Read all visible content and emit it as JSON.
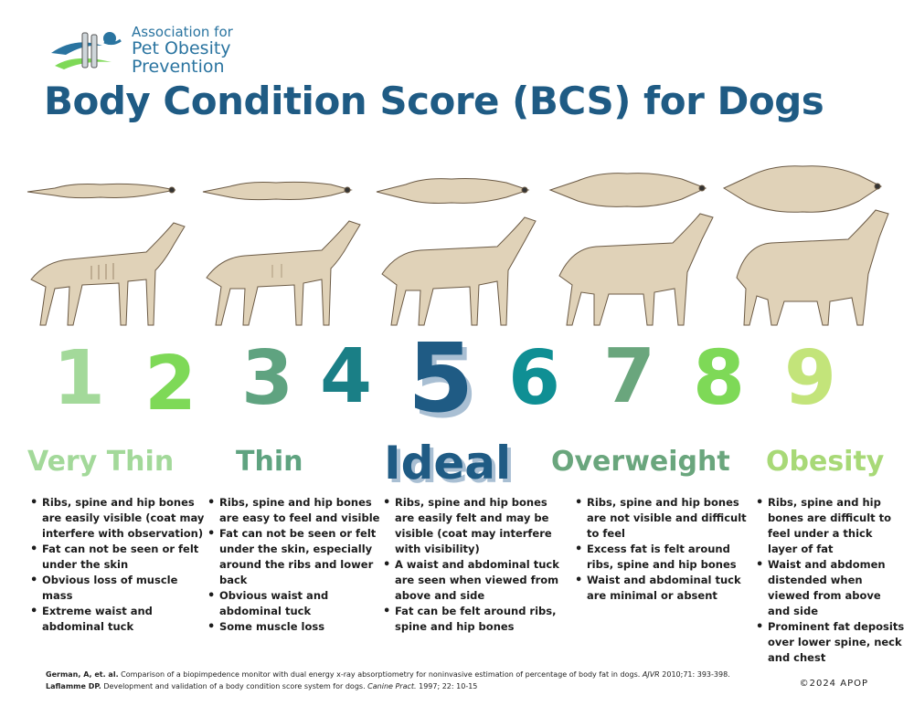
{
  "logo": {
    "line1": "Association for",
    "line2": "Pet Obesity",
    "line3": "Prevention"
  },
  "title": "Body Condition Score (BCS) for Dogs",
  "illustration_credit": "©2024 APOP",
  "scores": [
    {
      "value": "1",
      "color": "#a3d99a"
    },
    {
      "value": "2",
      "color": "#7ed957"
    },
    {
      "value": "3",
      "color": "#5fa380"
    },
    {
      "value": "4",
      "color": "#1a7f86"
    },
    {
      "value": "5",
      "color": "#1f5b84"
    },
    {
      "value": "6",
      "color": "#0f8f94"
    },
    {
      "value": "7",
      "color": "#6aa67d"
    },
    {
      "value": "8",
      "color": "#7ed957"
    },
    {
      "value": "9",
      "color": "#c3e47a"
    }
  ],
  "categories": [
    {
      "label": "Very Thin",
      "color": "#a3d99a"
    },
    {
      "label": "Thin",
      "color": "#5fa380"
    },
    {
      "label": "Ideal",
      "color": "#1f5b84"
    },
    {
      "label": "Overweight",
      "color": "#6aa67d"
    },
    {
      "label": "Obesity",
      "color": "#a8d977"
    }
  ],
  "descriptions": [
    [
      "Ribs, spine and hip bones are easily visible (coat may interfere with observation)",
      "Fat can not be seen or felt under the skin",
      "Obvious loss of muscle mass",
      "Extreme waist and abdominal tuck"
    ],
    [
      "Ribs, spine and hip bones are easy to feel and visible",
      "Fat can not be seen or felt under the skin, especially around the ribs and lower back",
      "Obvious waist and abdominal tuck",
      "Some muscle loss"
    ],
    [
      "Ribs, spine and hip bones are easily felt and may be visible (coat may interfere with visibility)",
      "A waist and abdominal tuck are seen when viewed from above and side",
      "Fat can be felt around ribs, spine and hip bones"
    ],
    [
      "Ribs, spine and hip bones are not visible and difficult to feel",
      "Excess fat is felt around ribs, spine and hip bones",
      "Waist and abdominal tuck are minimal or absent"
    ],
    [
      "Ribs, spine and hip bones are difficult to feel under a thick layer of fat",
      "Waist and abdomen distended when viewed from above and side",
      "Prominent fat deposits over lower spine, neck and chest"
    ]
  ],
  "references": {
    "ref1_author": "German, A, et. al.",
    "ref1_text": " Comparison of a biopimpedence monitor with dual energy x-ray absorptiometry for noninvasive estimation of percentage of body fat in dogs. ",
    "ref1_journal": "AJVR",
    "ref1_tail": " 2010;71: 393-398.",
    "ref2_author": "Laflamme DP.",
    "ref2_text": " Development and validation of a body condition score system for dogs. ",
    "ref2_journal": "Canine Pract.",
    "ref2_tail": " 1997; 22: 10-15"
  },
  "copyright": "©2024 APOP"
}
